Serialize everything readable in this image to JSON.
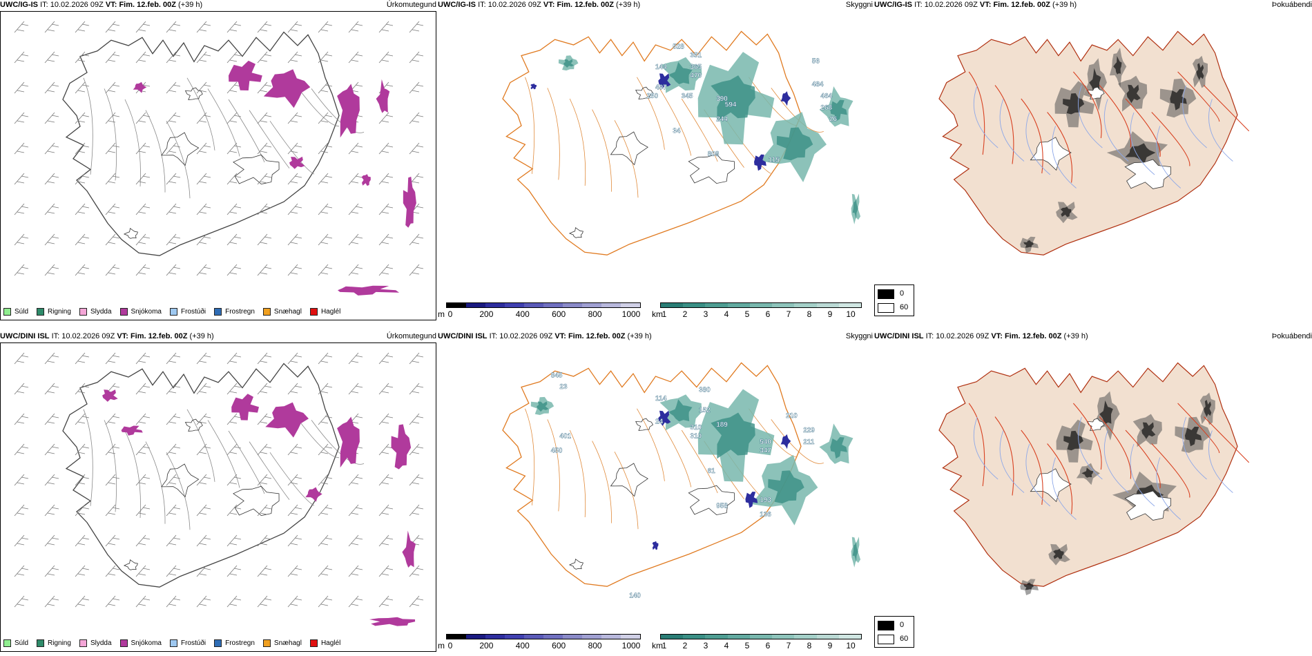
{
  "common": {
    "it_label": "IT:",
    "it_value": "10.02.2026 09Z",
    "vt_label": "VT:",
    "vt_value": "Fim. 12.feb. 00Z",
    "lead": "(+39 h)"
  },
  "rows": [
    {
      "model": "UWC/IG-IS"
    },
    {
      "model": "UWC/DINI ISL"
    }
  ],
  "panels": {
    "precip_type": {
      "title": "Úrkomutegund"
    },
    "cloud_base": {
      "title": "Skyggni"
    },
    "fog": {
      "title": "Þokuábendi"
    }
  },
  "precip_legend": [
    {
      "label": "Súld",
      "color": "#90ee90"
    },
    {
      "label": "Rigning",
      "color": "#2e8b6a"
    },
    {
      "label": "Slydda",
      "color": "#f4a6d7"
    },
    {
      "label": "Snjókoma",
      "color": "#b03a9c"
    },
    {
      "label": "Frostúði",
      "color": "#9ec8f0"
    },
    {
      "label": "Frostregn",
      "color": "#2f6db5"
    },
    {
      "label": "Snæhagl",
      "color": "#f0a020"
    },
    {
      "label": "Haglél",
      "color": "#e01010"
    }
  ],
  "cloudbase_scale": {
    "unit": "m",
    "ticks": [
      "0",
      "200",
      "400",
      "600",
      "800",
      "1000"
    ],
    "colors": [
      "#000000",
      "#1a1a80",
      "#2d2d9e",
      "#4040b0",
      "#5a5ab8",
      "#7070c0",
      "#8a8ac8",
      "#a0a0d2",
      "#b8b8dc",
      "#d0d0e6"
    ]
  },
  "visibility_scale": {
    "unit": "km",
    "ticks": [
      "1",
      "2",
      "3",
      "4",
      "5",
      "6",
      "7",
      "8",
      "9",
      "10"
    ],
    "colors": [
      "#2a7d75",
      "#3a8f85",
      "#4e9d92",
      "#62aaa0",
      "#78b7ad",
      "#8ec4bb",
      "#a4d0c8",
      "#bad9d4",
      "#d0e6e2"
    ]
  },
  "fog_key": [
    {
      "label": "0",
      "color": "#000000"
    },
    {
      "label": "60",
      "color": "#ffffff"
    }
  ],
  "top_labels": [
    "528",
    "351",
    "365",
    "470",
    "345",
    "390",
    "594",
    "244",
    "464",
    "268",
    "484",
    "115",
    "808",
    "144",
    "497",
    "250",
    "26",
    "56",
    "34"
  ],
  "bottom_labels": [
    "380",
    "152",
    "310",
    "310",
    "540",
    "347",
    "229",
    "211",
    "210",
    "958",
    "136",
    "193",
    "401",
    "450",
    "114",
    "189",
    "845",
    "140",
    "61",
    "24",
    "23"
  ]
}
